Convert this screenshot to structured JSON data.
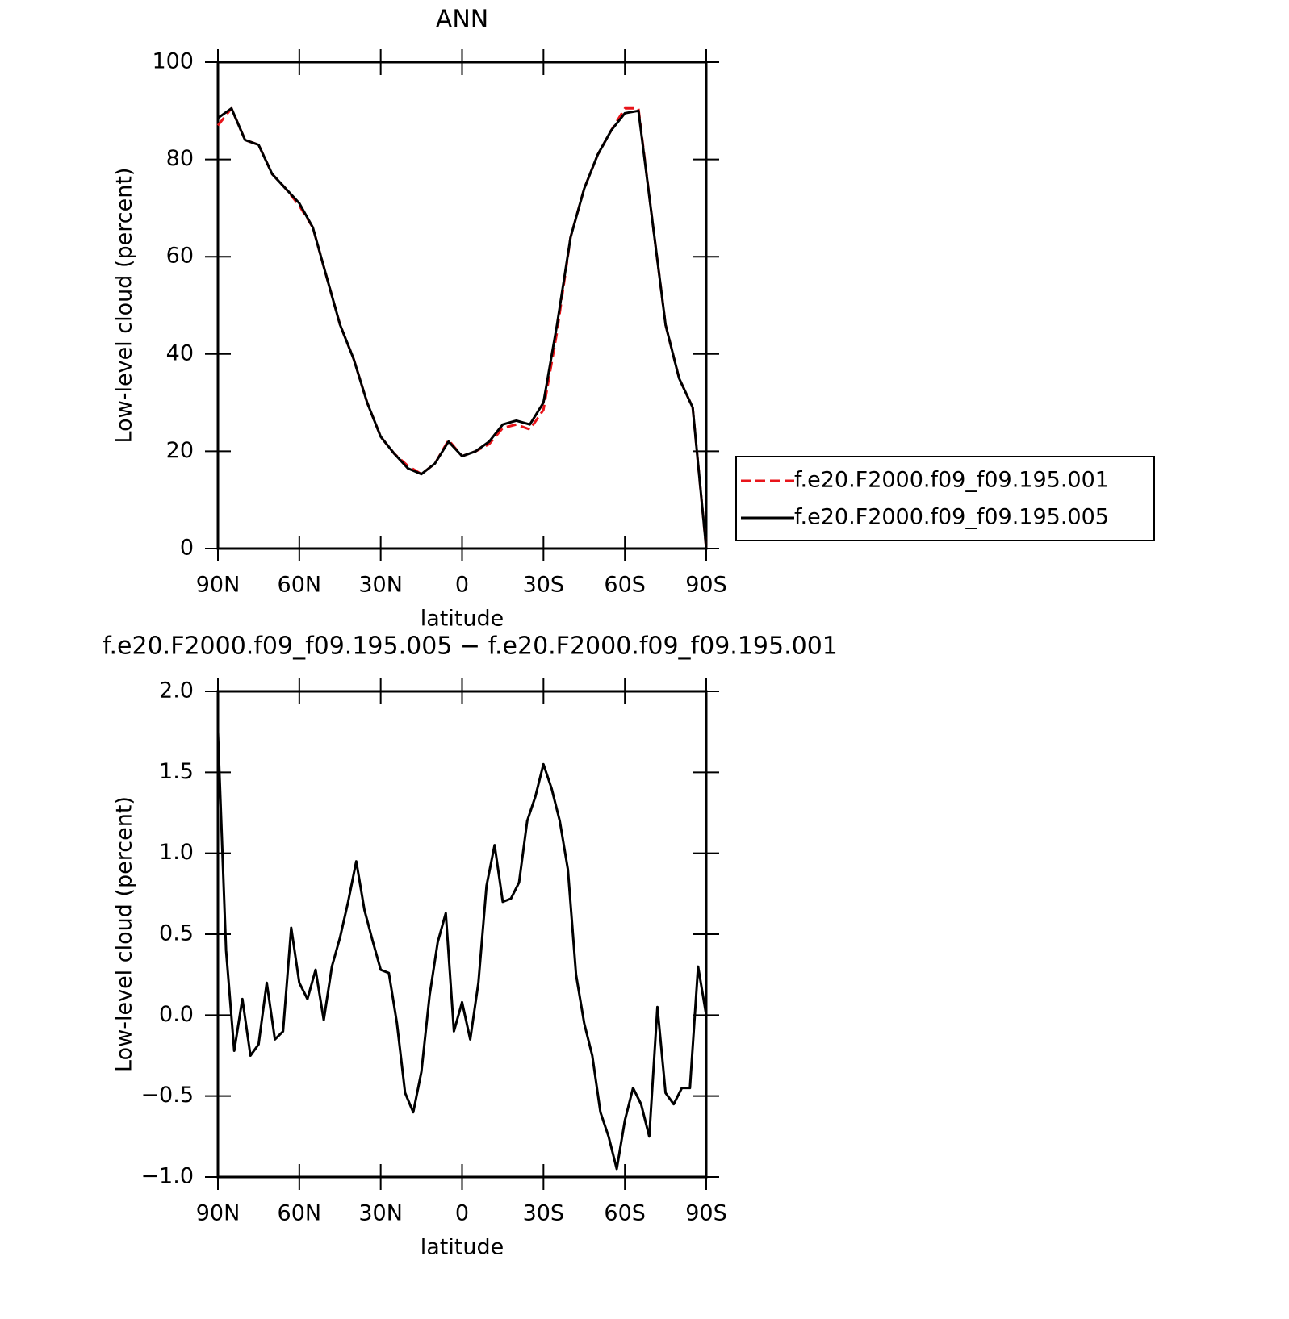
{
  "chart_data": [
    {
      "type": "line",
      "title": "ANN",
      "xlabel": "latitude",
      "ylabel": "Low-level cloud (percent)",
      "x": [
        90,
        85,
        80,
        75,
        70,
        65,
        60,
        55,
        50,
        45,
        40,
        35,
        30,
        25,
        20,
        15,
        10,
        5,
        0,
        -5,
        -10,
        -15,
        -20,
        -25,
        -30,
        -35,
        -40,
        -45,
        -50,
        -55,
        -60,
        -65,
        -70,
        -75,
        -80,
        -85,
        -90
      ],
      "series": [
        {
          "name": "f.e20.F2000.f09_f09.195.001",
          "color": "#e8141a",
          "linestyle": "dashed",
          "values": [
            87,
            90.5,
            84,
            83,
            77,
            74,
            70.5,
            66,
            56,
            46,
            39,
            30,
            23,
            19.5,
            17,
            15.3,
            17.5,
            22.3,
            19,
            20,
            21.5,
            24.8,
            25.5,
            24.5,
            28.5,
            44.5,
            64,
            74,
            81,
            86,
            90.5,
            90.5,
            68,
            46,
            35,
            29,
            0
          ]
        },
        {
          "name": "f.e20.F2000.f09_f09.195.005",
          "color": "#000000",
          "linestyle": "solid",
          "values": [
            88.5,
            90.5,
            84,
            83,
            77,
            74,
            71,
            66,
            56,
            46,
            39,
            30,
            23,
            19.5,
            16.5,
            15.3,
            17.5,
            22,
            19,
            20,
            22,
            25.5,
            26.3,
            25.5,
            30,
            46,
            64,
            74,
            81,
            86,
            89.5,
            90,
            68,
            46,
            35,
            29,
            0
          ]
        }
      ],
      "xlim": [
        90,
        -90
      ],
      "xticks": [
        {
          "value": 90,
          "label": "90N"
        },
        {
          "value": 60,
          "label": "60N"
        },
        {
          "value": 30,
          "label": "30N"
        },
        0,
        {
          "value": -30,
          "label": "30S"
        },
        {
          "value": -60,
          "label": "60S"
        },
        {
          "value": -90,
          "label": "90S"
        }
      ],
      "ylim": [
        0,
        100
      ],
      "yticks": [
        0,
        20,
        40,
        60,
        80,
        100
      ],
      "legend": "right"
    },
    {
      "type": "line",
      "title": "f.e20.F2000.f09_f09.195.005 − f.e20.F2000.f09_f09.195.001",
      "xlabel": "latitude",
      "ylabel": "Low-level cloud (percent)",
      "x": [
        90,
        87,
        84,
        81,
        78,
        75,
        72,
        69,
        66,
        63,
        60,
        57,
        54,
        51,
        48,
        45,
        42,
        39,
        36,
        33,
        30,
        27,
        24,
        21,
        18,
        15,
        12,
        9,
        6,
        3,
        0,
        -3,
        -6,
        -9,
        -12,
        -15,
        -18,
        -21,
        -24,
        -27,
        -30,
        -33,
        -36,
        -39,
        -42,
        -45,
        -48,
        -51,
        -54,
        -57,
        -60,
        -63,
        -66,
        -69,
        -72,
        -75,
        -78,
        -81,
        -84,
        -87,
        -90
      ],
      "series": [
        {
          "name": null,
          "color": "#000000",
          "linestyle": "solid",
          "values": [
            1.75,
            0.4,
            -0.22,
            0.1,
            -0.25,
            -0.18,
            0.2,
            -0.15,
            -0.1,
            0.54,
            0.2,
            0.1,
            0.28,
            -0.03,
            0.3,
            0.48,
            0.7,
            0.95,
            0.65,
            0.46,
            0.28,
            0.26,
            -0.05,
            -0.48,
            -0.6,
            -0.35,
            0.12,
            0.45,
            0.63,
            -0.1,
            0.08,
            -0.15,
            0.2,
            0.8,
            1.05,
            0.7,
            0.72,
            0.82,
            1.2,
            1.35,
            1.55,
            1.4,
            1.2,
            0.9,
            0.25,
            -0.05,
            -0.25,
            -0.6,
            -0.75,
            -0.95,
            -0.65,
            -0.45,
            -0.55,
            -0.75,
            0.05,
            -0.48,
            -0.55,
            -0.45,
            -0.45,
            0.3,
            0
          ]
        }
      ],
      "xlim": [
        90,
        -90
      ],
      "xticks": [
        {
          "value": 90,
          "label": "90N"
        },
        {
          "value": 60,
          "label": "60N"
        },
        {
          "value": 30,
          "label": "30N"
        },
        0,
        {
          "value": -30,
          "label": "30S"
        },
        {
          "value": -60,
          "label": "60S"
        },
        {
          "value": -90,
          "label": "90S"
        }
      ],
      "ylim": [
        -1,
        2
      ],
      "yticks": [
        {
          "value": -1,
          "label": "−1.0"
        },
        {
          "value": -0.5,
          "label": "−0.5"
        },
        {
          "value": 0,
          "label": "0.0"
        },
        0.5,
        {
          "value": 1,
          "label": "1.0"
        },
        1.5,
        {
          "value": 2,
          "label": "2.0"
        }
      ]
    }
  ]
}
